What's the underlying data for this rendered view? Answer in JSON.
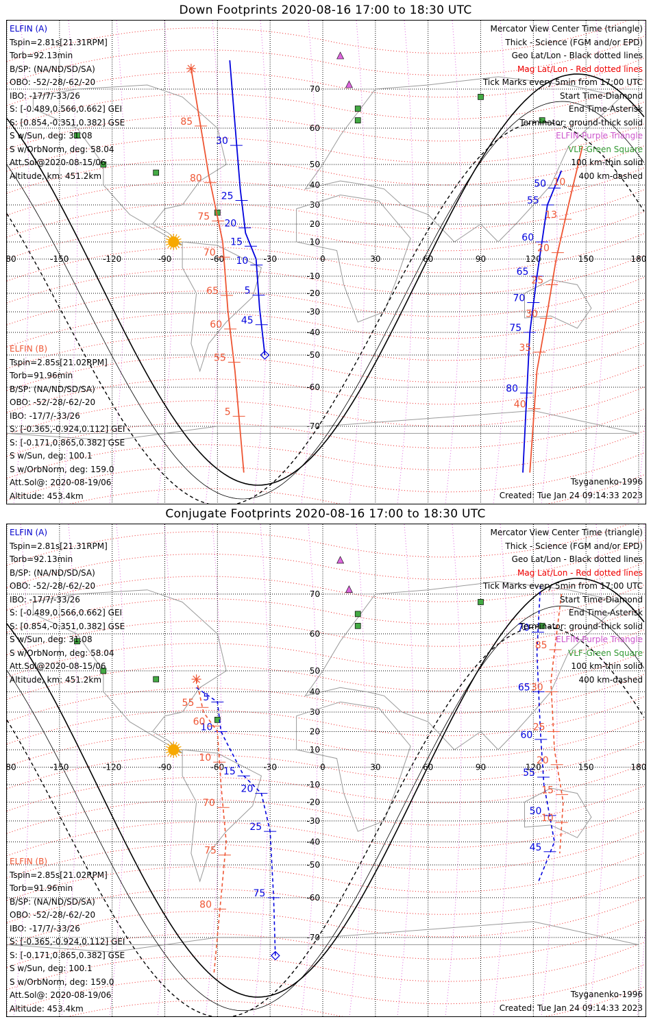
{
  "panels": [
    {
      "title": "Down Footprints 2020-08-16 17:00 to 18:30 UTC",
      "elfin_a": {
        "name": "ELFIN (A)",
        "lines": [
          "Tspin=2.81s[21.31RPM]",
          "Torb=92.13min",
          "B/SP: (NA/ND/SD/SA)",
          "OBO: -52/-28/-62/-20",
          "IBO: -17/7/-33/26",
          "S: [-0.489,0.566,0.662] GEI",
          "S: [0.854,-0.351,0.382] GSE",
          "S w/Sun, deg: 31.08",
          "S w/OrbNorm, deg: 58.04",
          "Att.Sol@2020-08-15/06",
          "Altitude, km: 451.2km"
        ]
      },
      "elfin_b": {
        "name": "ELFIN (B)",
        "lines": [
          "Tspin=2.85s[21.02RPM]",
          "Torb=91.96min",
          "B/SP: (NA/ND/SD/SA)",
          "OBO: -52/-28/-62/-20",
          "IBO: -17/7/-33/26",
          "S: [-0.365,-0.924,0.112] GEI",
          "S: [-0.171,0.865,0.382] GSE",
          "S w/Sun, deg: 100.1",
          "S w/OrbNorm, deg: 159.0",
          "Att.Sol@: 2020-08-19/06",
          "Altitude: 453.4km"
        ]
      },
      "legend": [
        {
          "text": "Mercator View Center Time (triangle)",
          "color": "#000000"
        },
        {
          "text": "Thick - Science (FGM and/or EPD)",
          "color": "#000000"
        },
        {
          "text": "Geo Lat/Lon - Black dotted lines",
          "color": "#000000"
        },
        {
          "text": "Mag Lat/Lon - Red dotted lines",
          "color": "#ee0000"
        },
        {
          "text": "Tick Marks every 5min from 17:00 UTC",
          "color": "#000000"
        },
        {
          "text": "Start Time-Diamond",
          "color": "#000000"
        },
        {
          "text": "End Time-Asterisk",
          "color": "#000000"
        },
        {
          "text": "Terminator: ground-thick solid",
          "color": "#000000"
        },
        {
          "text": "ELFIN-Purple Triangle",
          "color": "#cc55cc"
        },
        {
          "text": "VLF-Green Square",
          "color": "#339933"
        },
        {
          "text": "100 km-thin solid",
          "color": "#000000"
        },
        {
          "text": "400 km-dashed",
          "color": "#000000"
        }
      ],
      "model": "Tsyganenko-1996",
      "created": "Created: Tue Jan 24 09:14:33 2023"
    },
    {
      "title": "Conjugate Footprints 2020-08-16 17:00 to 18:30 UTC",
      "elfin_a": {
        "name": "ELFIN (A)",
        "lines": [
          "Tspin=2.81s[21.31RPM]",
          "Torb=92.13min",
          "B/SP: (NA/ND/SD/SA)",
          "OBO: -52/-28/-62/-20",
          "IBO: -17/7/-33/26",
          "S: [-0.489,0.566,0.662] GEI",
          "S: [0.854,-0.351,0.382] GSE",
          "S w/Sun, deg: 31.08",
          "S w/OrbNorm, deg: 58.04",
          "Att.Sol@2020-08-15/06",
          "Altitude, km: 451.2km"
        ]
      },
      "elfin_b": {
        "name": "ELFIN (B)",
        "lines": [
          "Tspin=2.85s[21.02RPM]",
          "Torb=91.96min",
          "B/SP: (NA/ND/SD/SA)",
          "OBO: -52/-28/-62/-20",
          "IBO: -17/7/-33/26",
          "S: [-0.365,-0.924,0.112] GEI",
          "S: [-0.171,0.865,0.382] GSE",
          "S w/Sun, deg: 100.1",
          "S w/OrbNorm, deg: 159.0",
          "Att.Sol@: 2020-08-19/06",
          "Altitude: 453.4km"
        ]
      },
      "legend": [
        {
          "text": "Mercator View Center Time (triangle)",
          "color": "#000000"
        },
        {
          "text": "Thick - Science (FGM and/or EPD)",
          "color": "#000000"
        },
        {
          "text": "Geo Lat/Lon - Black dotted lines",
          "color": "#000000"
        },
        {
          "text": "Mag Lat/Lon - Red dotted lines",
          "color": "#ee0000"
        },
        {
          "text": "Tick Marks every 5min from 17:00 UTC",
          "color": "#000000"
        },
        {
          "text": "Start Time-Diamond",
          "color": "#000000"
        },
        {
          "text": "End Time-Asterisk",
          "color": "#000000"
        },
        {
          "text": "Terminator: ground-thick solid",
          "color": "#000000"
        },
        {
          "text": "ELFIN-Purple Triangle",
          "color": "#cc55cc"
        },
        {
          "text": "VLF-Green Square",
          "color": "#339933"
        },
        {
          "text": "100 km-thin solid",
          "color": "#000000"
        },
        {
          "text": "400 km-dashed",
          "color": "#000000"
        }
      ],
      "model": "Tsyganenko-1996",
      "created": "Created: Tue Jan 24 09:14:33 2023"
    }
  ],
  "map": {
    "lon_labels": [
      "-180",
      "-150",
      "-120",
      "-90",
      "-60",
      "-30",
      "0",
      "30",
      "60",
      "90",
      "120",
      "150",
      "180"
    ],
    "lat_labels": [
      "70",
      "60",
      "50",
      "40",
      "30",
      "20",
      "10",
      "-10",
      "-20",
      "-30",
      "-40",
      "-50",
      "-60",
      "-70"
    ]
  },
  "tracks": {
    "down": {
      "a": {
        "labels": [
          "30",
          "25",
          "20",
          "15",
          "10",
          "5",
          "45",
          "50",
          "55",
          "60",
          "65",
          "70",
          "75",
          "80"
        ],
        "track1": [
          [
            -53,
            84
          ],
          [
            -47,
            38
          ],
          [
            -44,
            15
          ],
          [
            -38,
            0
          ],
          [
            -36,
            -28
          ],
          [
            -33,
            -50
          ]
        ],
        "track2": [
          [
            136,
            47
          ],
          [
            128,
            30
          ],
          [
            122,
            -10
          ],
          [
            118,
            -40
          ],
          [
            114,
            -83
          ]
        ]
      },
      "b": {
        "labels": [
          "85",
          "80",
          "75",
          "70",
          "65",
          "60",
          "55",
          "5",
          "10",
          "13",
          "20",
          "25",
          "30",
          "35",
          "40"
        ],
        "track1": [
          [
            -75,
            80
          ],
          [
            -65,
            45
          ],
          [
            -57,
            10
          ],
          [
            -54,
            -30
          ],
          [
            -50,
            -55
          ],
          [
            -45,
            -83
          ]
        ],
        "track2": [
          [
            148,
            55
          ],
          [
            140,
            30
          ],
          [
            133,
            0
          ],
          [
            128,
            -30
          ],
          [
            122,
            -55
          ],
          [
            118,
            -83
          ]
        ]
      }
    },
    "conjugate": {
      "a": {
        "labels": [
          "5",
          "10",
          "15",
          "20",
          "25",
          "75",
          "70",
          "65",
          "60",
          "55",
          "50",
          "45"
        ],
        "track1": [
          [
            -72,
            42
          ],
          [
            -60,
            35
          ],
          [
            -58,
            20
          ],
          [
            -45,
            -5
          ],
          [
            -35,
            -15
          ],
          [
            -30,
            -35
          ],
          [
            -28,
            -60
          ],
          [
            -27,
            -75
          ]
        ],
        "track2": [
          [
            124,
            74
          ],
          [
            122,
            55
          ],
          [
            124,
            20
          ],
          [
            126,
            -10
          ],
          [
            132,
            -40
          ],
          [
            123,
            -55
          ]
        ]
      },
      "b": {
        "labels": [
          "55",
          "60",
          "10",
          "70",
          "75",
          "80",
          "85",
          "30",
          "25",
          "20",
          "15",
          "10"
        ],
        "track1": [
          [
            -72,
            46
          ],
          [
            -68,
            30
          ],
          [
            -60,
            20
          ],
          [
            -58,
            -10
          ],
          [
            -55,
            -40
          ],
          [
            -58,
            -60
          ],
          [
            -62,
            -80
          ]
        ],
        "track2": [
          [
            136,
            70
          ],
          [
            130,
            45
          ],
          [
            132,
            10
          ],
          [
            137,
            -20
          ],
          [
            135,
            -45
          ]
        ]
      }
    }
  }
}
